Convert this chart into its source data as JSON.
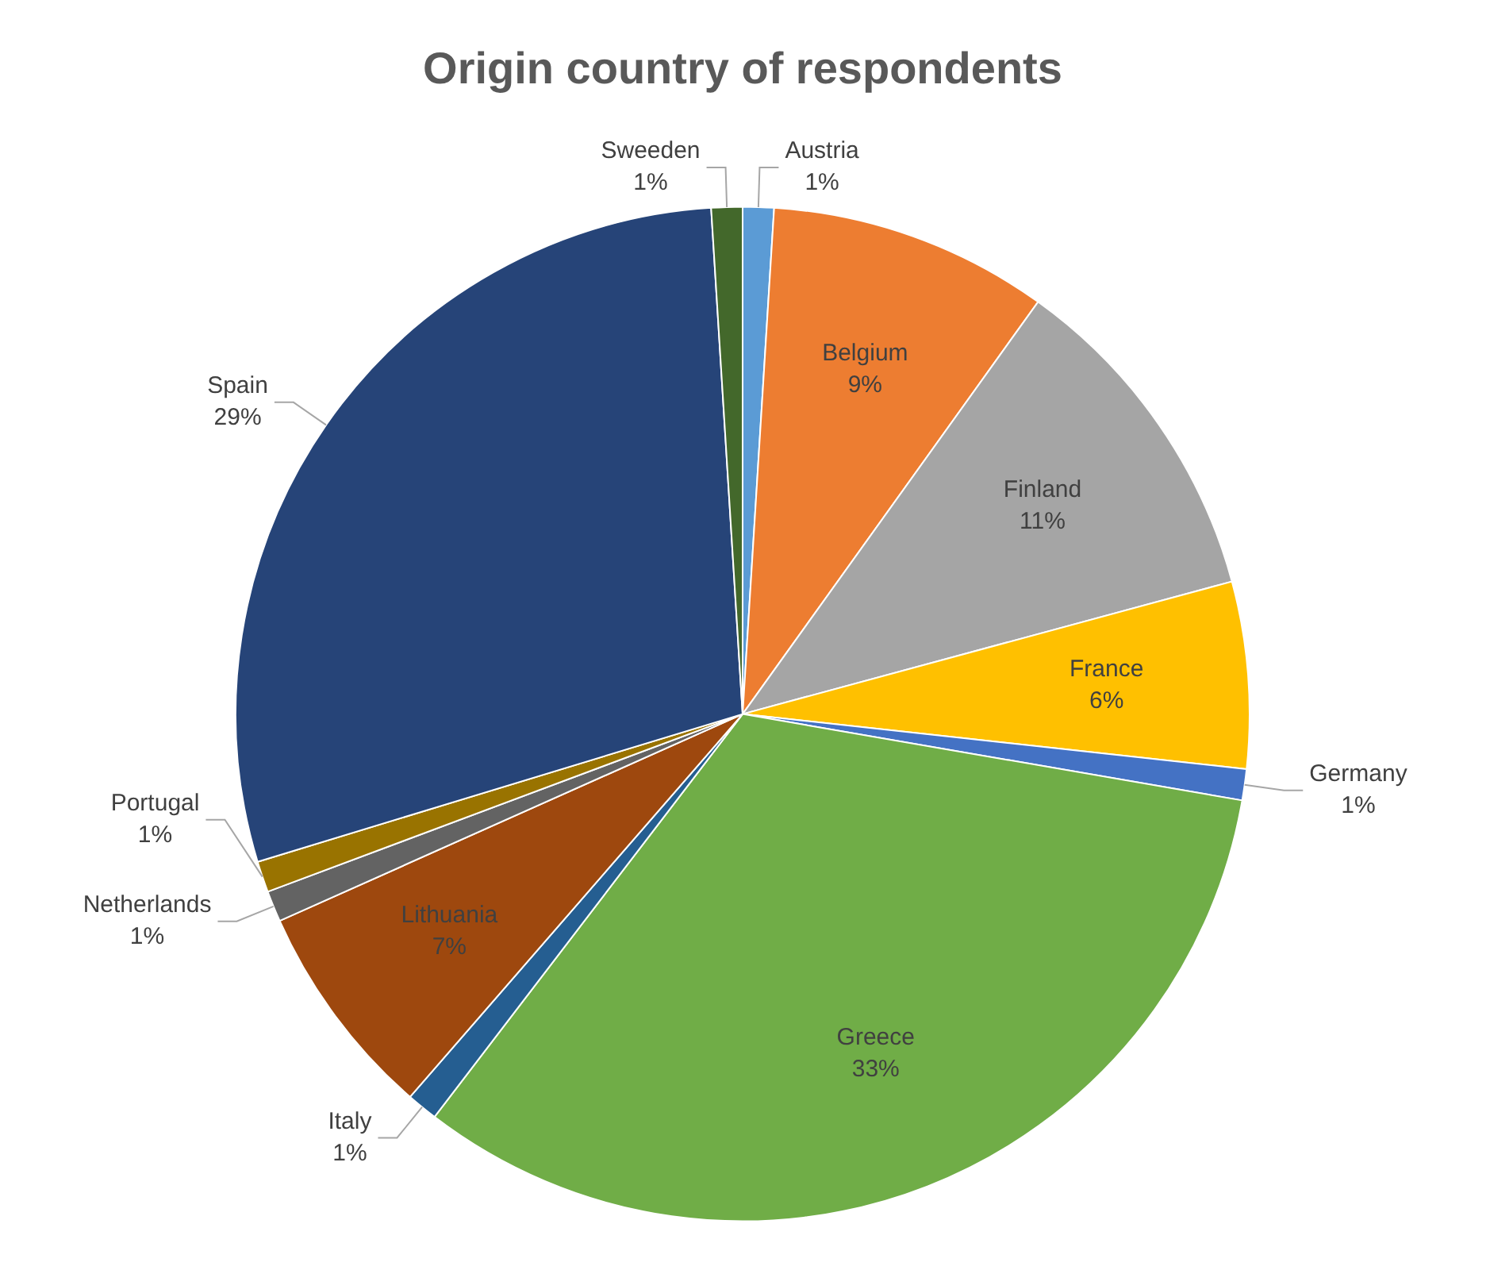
{
  "chart_data": {
    "type": "pie",
    "title": "Origin country of respondents",
    "categories": [
      "Austria",
      "Belgium",
      "Finland",
      "France",
      "Germany",
      "Greece",
      "Italy",
      "Lithuania",
      "Netherlands",
      "Portugal",
      "Spain",
      "Sweeden"
    ],
    "values": [
      1,
      9,
      11,
      6,
      1,
      33,
      1,
      7,
      1,
      1,
      29,
      1
    ],
    "value_labels": [
      "1%",
      "9%",
      "11%",
      "6%",
      "1%",
      "33%",
      "1%",
      "7%",
      "1%",
      "1%",
      "29%",
      "1%"
    ],
    "colors": [
      "#5b9bd5",
      "#ed7d31",
      "#a5a5a5",
      "#ffc000",
      "#4472c4",
      "#70ad47",
      "#255e91",
      "#9e480e",
      "#636363",
      "#997300",
      "#264478",
      "#43682b"
    ],
    "legend": false
  }
}
